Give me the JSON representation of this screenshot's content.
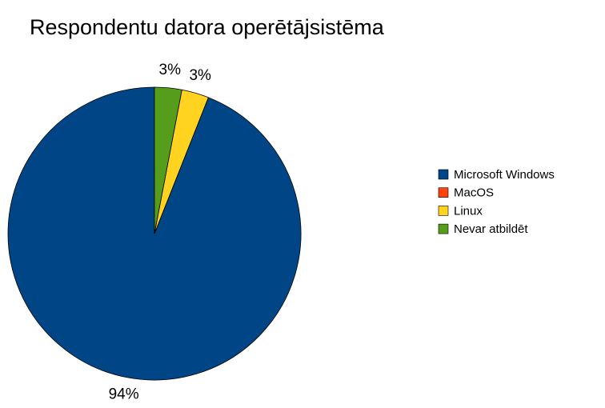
{
  "chart_data": {
    "type": "pie",
    "title": "Respondentu datora operētājsistēma",
    "categories": [
      "Microsoft Windows",
      "MacOS",
      "Linux",
      "Nevar atbildēt"
    ],
    "values": [
      94,
      0,
      3,
      3
    ],
    "value_labels": [
      "94%",
      null,
      "3%",
      "3%"
    ],
    "colors": [
      "#004586",
      "#ff420e",
      "#ffd320",
      "#579d1c"
    ],
    "legend": "right"
  }
}
